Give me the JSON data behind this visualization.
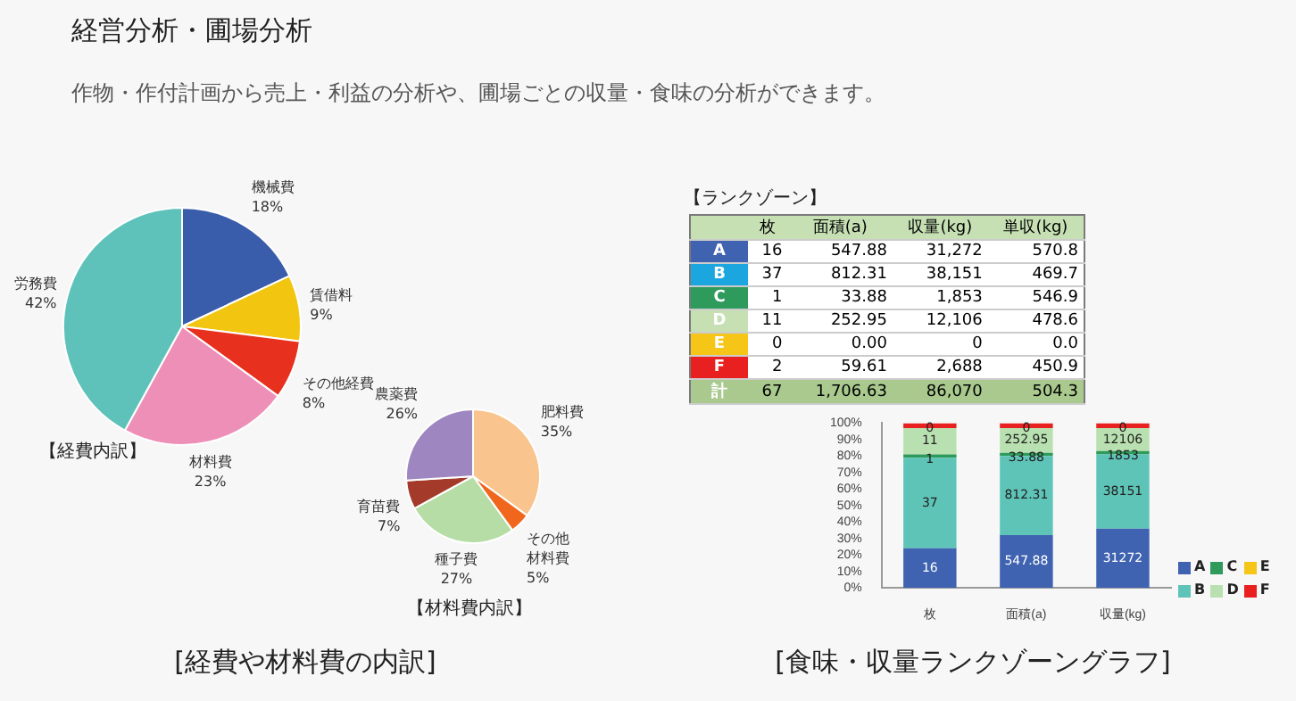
{
  "chart_data": [
    {
      "type": "pie",
      "title": "【経費内訳】",
      "categories": [
        "機械費",
        "賃借料",
        "その他経費",
        "材料費",
        "労務費"
      ],
      "values": [
        18,
        9,
        8,
        23,
        42
      ],
      "colors": [
        "#3a5dab",
        "#f2c511",
        "#e8301e",
        "#ee8fb8",
        "#5fc2ba"
      ],
      "value_labels": [
        "18%",
        "9%",
        "8%",
        "23%",
        "42%"
      ],
      "annotations": [
        "経営分析・圃場分析",
        "作物・作付計画から売上・利益の分析や、圃場ごとの収量・食味の分析ができます。"
      ]
    },
    {
      "type": "pie",
      "title": "【材料費内訳】",
      "categories": [
        "肥料費",
        "その他材料費",
        "種子費",
        "育苗費",
        "農薬費"
      ],
      "values": [
        35,
        5,
        27,
        7,
        26
      ],
      "colors": [
        "#f9c48e",
        "#f0661c",
        "#b6dda5",
        "#a33a2a",
        "#9e86c0"
      ],
      "value_labels": [
        "35%",
        "5%",
        "27%",
        "7%",
        "26%"
      ],
      "annotations": [
        "[経費や材料費の内訳]"
      ]
    },
    {
      "type": "other",
      "title": "【ランクゾーン】",
      "categories": [
        "枚",
        "面積(a)",
        "収量(kg)",
        "単収(kg)"
      ],
      "y_categories": [
        "A",
        "B",
        "C",
        "D",
        "E",
        "F",
        "計"
      ],
      "cell_labels": [
        [
          "16",
          "547.88",
          "31,272",
          "570.8"
        ],
        [
          "37",
          "812.31",
          "38,151",
          "469.7"
        ],
        [
          "1",
          "33.88",
          "1,853",
          "546.9"
        ],
        [
          "11",
          "252.95",
          "12,106",
          "478.6"
        ],
        [
          "0",
          "0.00",
          "0",
          "0.0"
        ],
        [
          "2",
          "59.61",
          "2,688",
          "450.9"
        ],
        [
          "67",
          "1,706.63",
          "86,070",
          "504.3"
        ]
      ]
    },
    {
      "type": "bar",
      "stacked": true,
      "categories": [
        "枚",
        "面積(a)",
        "収量(kg)"
      ],
      "ylim": [
        0,
        100
      ],
      "yticks": [
        {
          "value": 0,
          "label": "0%"
        },
        {
          "value": 10,
          "label": "10%"
        },
        {
          "value": 20,
          "label": "20%"
        },
        {
          "value": 30,
          "label": "30%"
        },
        {
          "value": 40,
          "label": "40%"
        },
        {
          "value": 50,
          "label": "50%"
        },
        {
          "value": 60,
          "label": "60%"
        },
        {
          "value": 70,
          "label": "70%"
        },
        {
          "value": 80,
          "label": "80%"
        },
        {
          "value": 90,
          "label": "90%"
        },
        {
          "value": 100,
          "label": "100%"
        }
      ],
      "legend": "right",
      "annotations": [
        "[食味・収量ランクゾーングラフ]",
        "16",
        "547.88",
        "31272",
        "37",
        "812.31",
        "38151",
        "1",
        "33.88",
        "1853",
        "11",
        "252.95",
        "12106",
        "0",
        "0",
        "0"
      ],
      "series": [
        {
          "name": "A",
          "color": "#3f63b0",
          "values": [
            24,
            32,
            36
          ]
        },
        {
          "name": "B",
          "color": "#5fc4b8",
          "values": [
            55,
            48,
            45
          ]
        },
        {
          "name": "C",
          "color": "#2e9a5c",
          "values": [
            2,
            2,
            2
          ]
        },
        {
          "name": "D",
          "color": "#b9e0b0",
          "values": [
            16,
            15,
            14
          ]
        },
        {
          "name": "E",
          "color": "#f5c518",
          "values": [
            0,
            0,
            0
          ]
        },
        {
          "name": "F",
          "color": "#e82020",
          "values": [
            3,
            3,
            3
          ]
        }
      ]
    }
  ]
}
